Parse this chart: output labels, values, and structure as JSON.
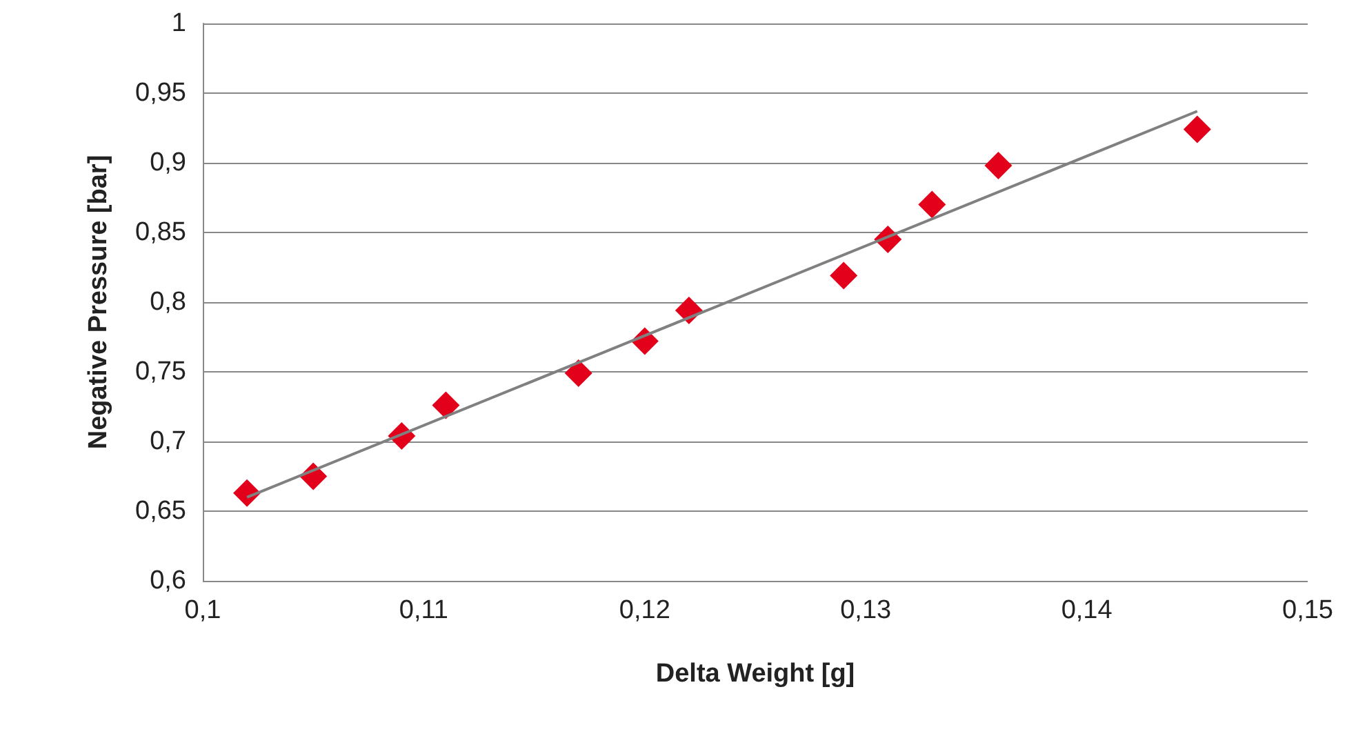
{
  "chart_data": {
    "type": "scatter",
    "xlabel": "Delta Weight [g]",
    "ylabel": "Negative Pressure [bar]",
    "series": [
      {
        "color": "#e2001a",
        "marker": "diamond",
        "x": [
          0.102,
          0.105,
          0.109,
          0.111,
          0.117,
          0.12,
          0.122,
          0.129,
          0.131,
          0.133,
          0.136,
          0.145
        ],
        "values": [
          0.663,
          0.675,
          0.704,
          0.726,
          0.749,
          0.772,
          0.794,
          0.819,
          0.845,
          0.87,
          0.898,
          0.924
        ]
      },
      {
        "type": "line",
        "color": "#808080",
        "marker": "none",
        "x": [
          0.102,
          0.145
        ],
        "values": [
          0.66,
          0.937
        ]
      }
    ],
    "xlim": [
      0.1,
      0.15
    ],
    "ylim": [
      0.6,
      1
    ],
    "xticks": [
      {
        "value": 0.1,
        "label": "0,1"
      },
      {
        "value": 0.11,
        "label": "0,11"
      },
      {
        "value": 0.12,
        "label": "0,12"
      },
      {
        "value": 0.13,
        "label": "0,13"
      },
      {
        "value": 0.14,
        "label": "0,14"
      },
      {
        "value": 0.15,
        "label": "0,15"
      }
    ],
    "yticks": [
      {
        "value": 0.6,
        "label": "0,6"
      },
      {
        "value": 0.65,
        "label": "0,65"
      },
      {
        "value": 0.7,
        "label": "0,7"
      },
      {
        "value": 0.75,
        "label": "0,75"
      },
      {
        "value": 0.8,
        "label": "0,8"
      },
      {
        "value": 0.85,
        "label": "0,85"
      },
      {
        "value": 0.9,
        "label": "0,9"
      },
      {
        "value": 0.95,
        "label": "0,95"
      },
      {
        "value": 1,
        "label": "1"
      }
    ],
    "grid": "y"
  }
}
